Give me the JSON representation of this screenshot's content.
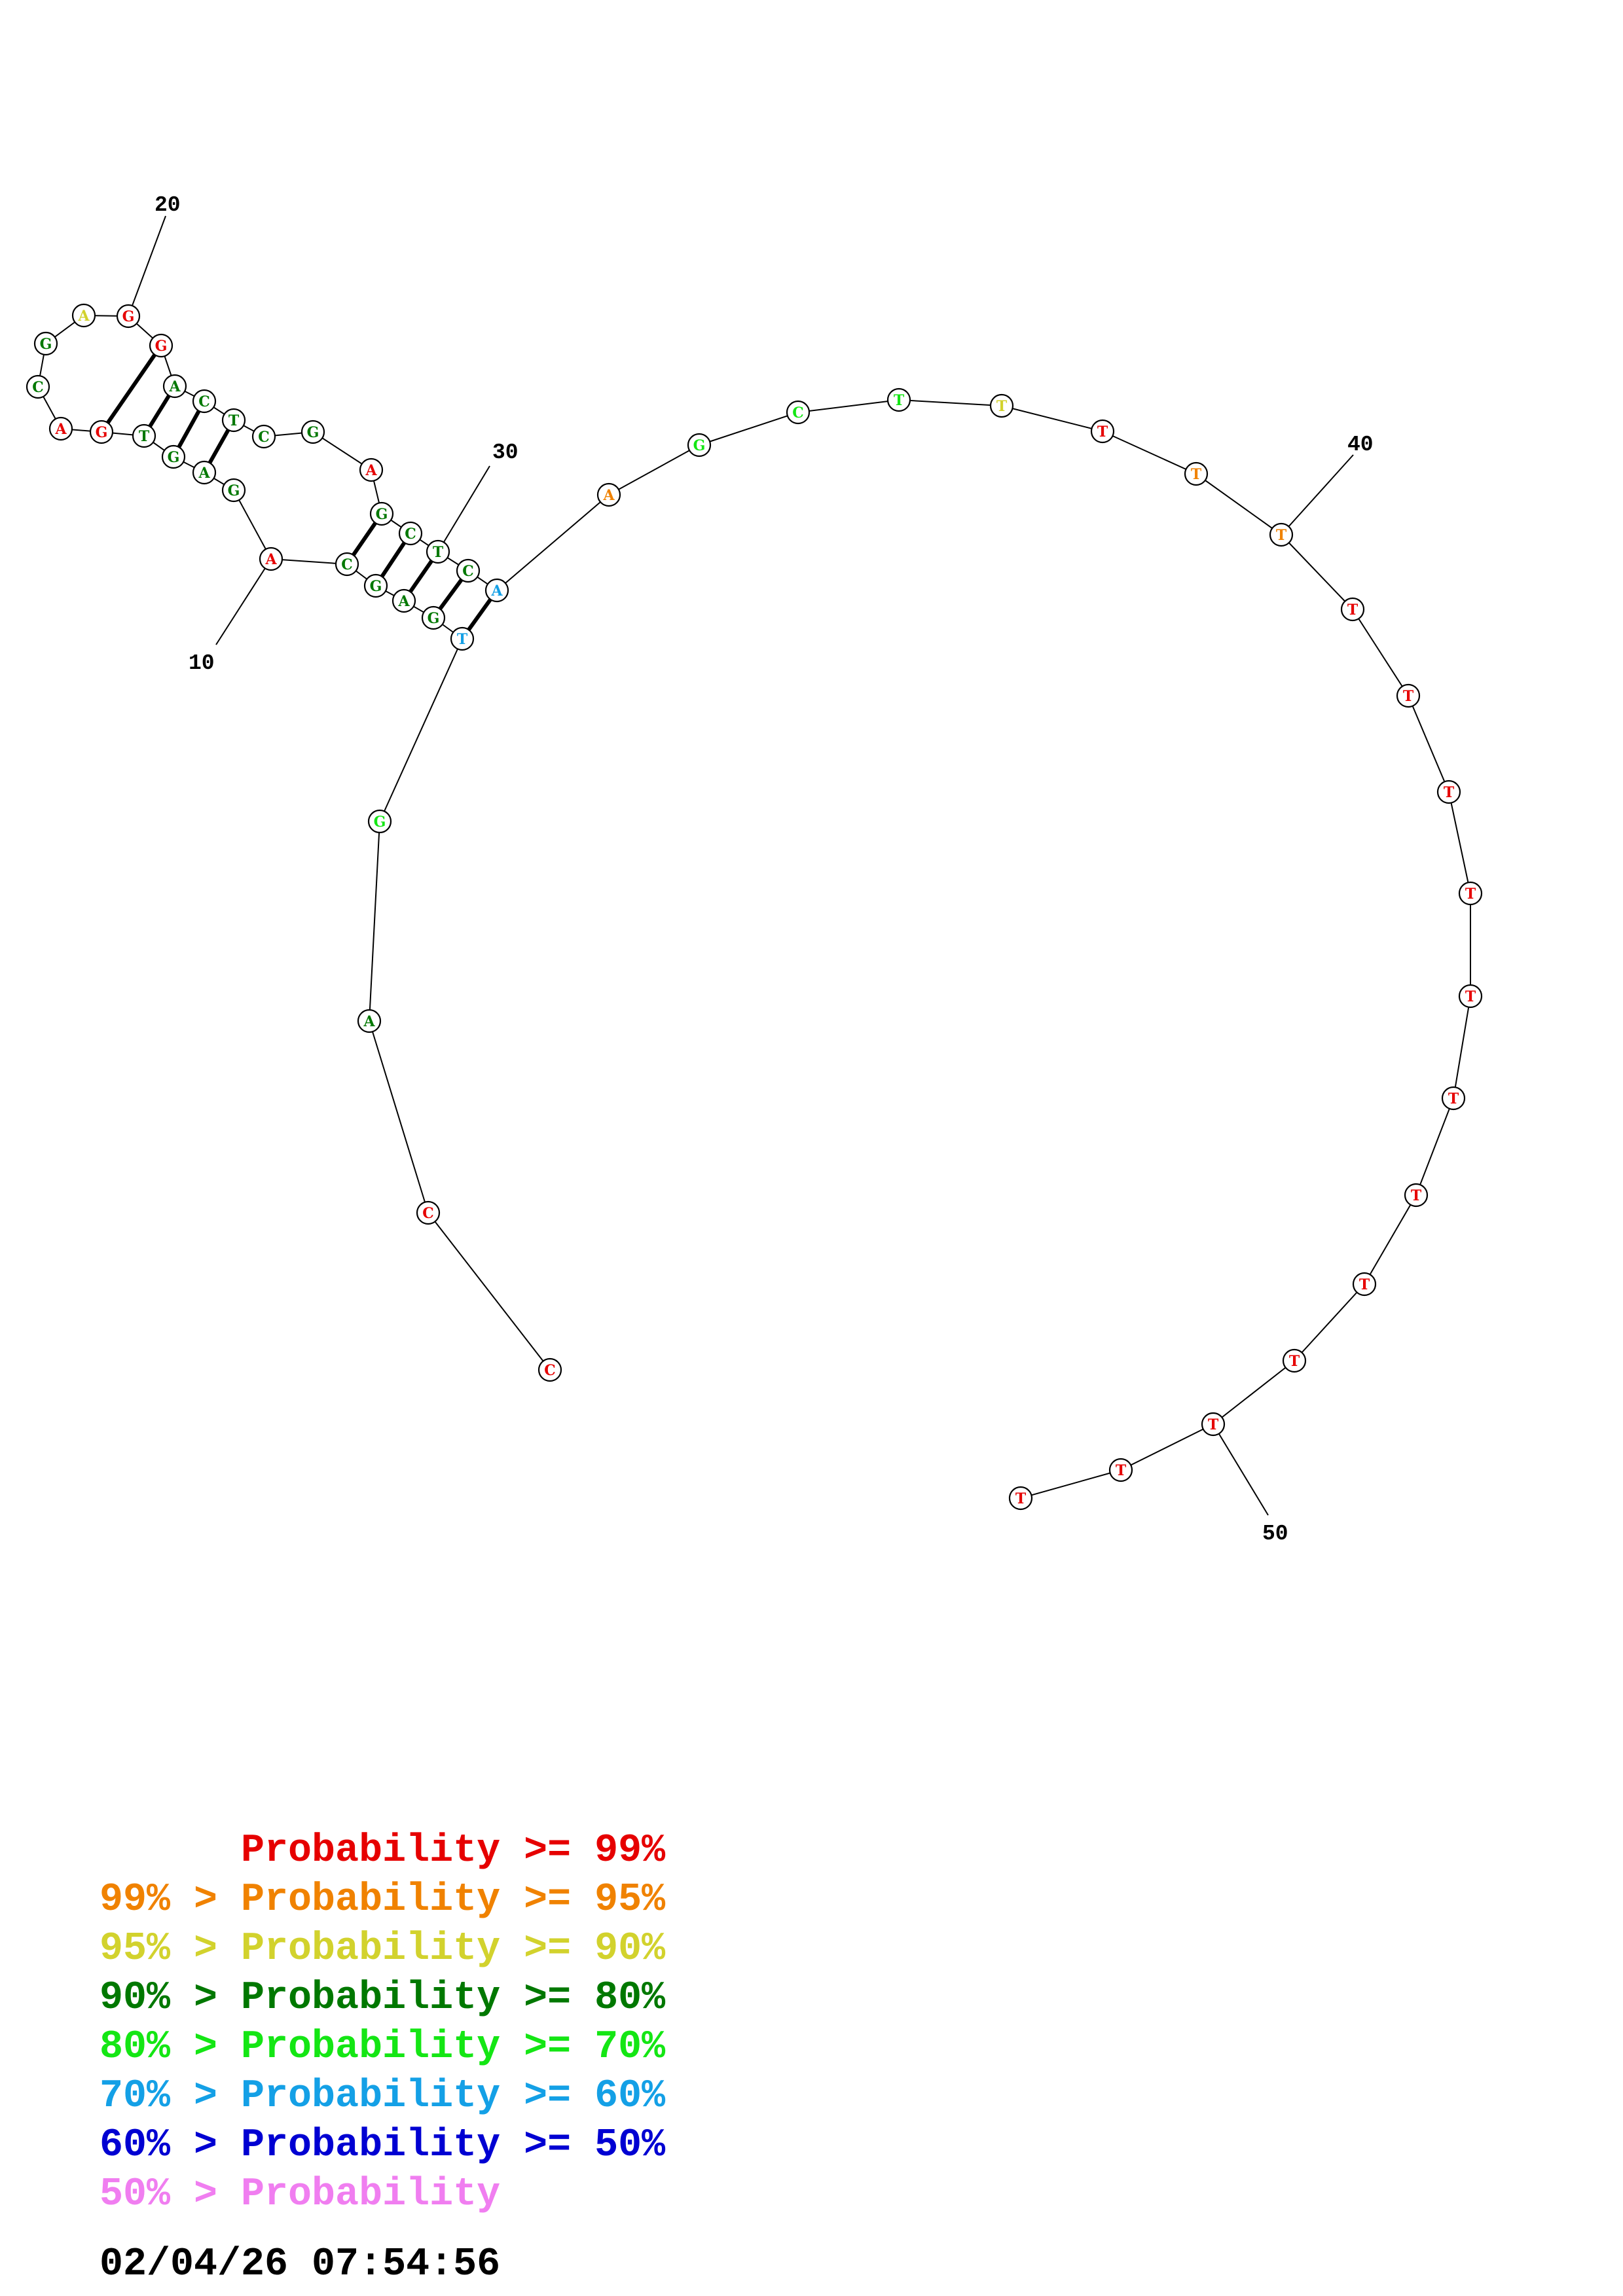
{
  "colors": {
    "p99": "#e60000",
    "p95": "#f08200",
    "p90": "#d2d22d",
    "p80": "#007800",
    "p70": "#14e614",
    "p60": "#14a0e6",
    "p50": "#0000d2",
    "plow": "#f07ef0"
  },
  "structure": {
    "nucleotides": [
      {
        "base": "C",
        "level": "p99"
      },
      {
        "base": "C",
        "level": "p99"
      },
      {
        "base": "A",
        "level": "p80"
      },
      {
        "base": "G",
        "level": "p70"
      },
      {
        "base": "T",
        "level": "p60"
      },
      {
        "base": "G",
        "level": "p80"
      },
      {
        "base": "A",
        "level": "p80"
      },
      {
        "base": "G",
        "level": "p80"
      },
      {
        "base": "C",
        "level": "p80"
      },
      {
        "base": "A",
        "level": "p99"
      },
      {
        "base": "G",
        "level": "p80"
      },
      {
        "base": "A",
        "level": "p80"
      },
      {
        "base": "G",
        "level": "p80"
      },
      {
        "base": "T",
        "level": "p80"
      },
      {
        "base": "G",
        "level": "p99"
      },
      {
        "base": "A",
        "level": "p99"
      },
      {
        "base": "C",
        "level": "p80"
      },
      {
        "base": "G",
        "level": "p80"
      },
      {
        "base": "A",
        "level": "p90"
      },
      {
        "base": "G",
        "level": "p99"
      },
      {
        "base": "G",
        "level": "p99"
      },
      {
        "base": "A",
        "level": "p80"
      },
      {
        "base": "C",
        "level": "p80"
      },
      {
        "base": "T",
        "level": "p80"
      },
      {
        "base": "C",
        "level": "p80"
      },
      {
        "base": "G",
        "level": "p80"
      },
      {
        "base": "A",
        "level": "p99"
      },
      {
        "base": "G",
        "level": "p80"
      },
      {
        "base": "C",
        "level": "p80"
      },
      {
        "base": "T",
        "level": "p80"
      },
      {
        "base": "C",
        "level": "p80"
      },
      {
        "base": "A",
        "level": "p60"
      },
      {
        "base": "A",
        "level": "p95"
      },
      {
        "base": "G",
        "level": "p70"
      },
      {
        "base": "C",
        "level": "p70"
      },
      {
        "base": "T",
        "level": "p70"
      },
      {
        "base": "T",
        "level": "p90"
      },
      {
        "base": "T",
        "level": "p99"
      },
      {
        "base": "T",
        "level": "p95"
      },
      {
        "base": "T",
        "level": "p95"
      },
      {
        "base": "T",
        "level": "p99"
      },
      {
        "base": "T",
        "level": "p99"
      },
      {
        "base": "T",
        "level": "p99"
      },
      {
        "base": "T",
        "level": "p99"
      },
      {
        "base": "T",
        "level": "p99"
      },
      {
        "base": "T",
        "level": "p99"
      },
      {
        "base": "T",
        "level": "p99"
      },
      {
        "base": "T",
        "level": "p99"
      },
      {
        "base": "T",
        "level": "p99"
      },
      {
        "base": "T",
        "level": "p99"
      },
      {
        "base": "T",
        "level": "p99"
      },
      {
        "base": "T",
        "level": "p99"
      }
    ],
    "pairs": [
      [
        5,
        32
      ],
      [
        6,
        31
      ],
      [
        7,
        30
      ],
      [
        8,
        29
      ],
      [
        9,
        28
      ],
      [
        12,
        24
      ],
      [
        13,
        23
      ],
      [
        14,
        22
      ],
      [
        15,
        21
      ]
    ],
    "position_labels": [
      "10",
      "20",
      "30",
      "40",
      "50"
    ]
  },
  "legend": [
    {
      "text": "      Probability >= 99%",
      "level": "p99"
    },
    {
      "text": "99% > Probability >= 95%",
      "level": "p95"
    },
    {
      "text": "95% > Probability >= 90%",
      "level": "p90"
    },
    {
      "text": "90% > Probability >= 80%",
      "level": "p80"
    },
    {
      "text": "80% > Probability >= 70%",
      "level": "p70"
    },
    {
      "text": "70% > Probability >= 60%",
      "level": "p60"
    },
    {
      "text": "60% > Probability >= 50%",
      "level": "p50"
    },
    {
      "text": "50% > Probability",
      "level": "plow"
    }
  ],
  "timestamp": "02/04/26 07:54:56"
}
